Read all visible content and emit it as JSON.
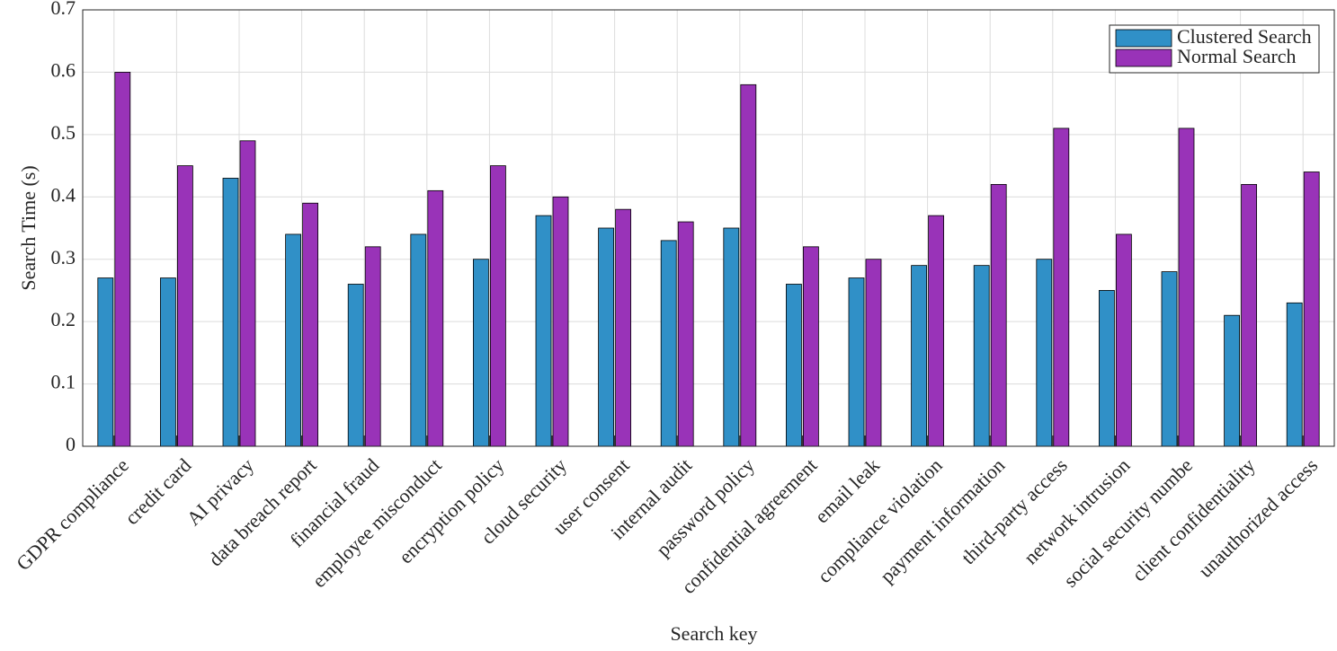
{
  "chart_data": {
    "type": "bar",
    "xlabel": "Search key",
    "ylabel": "Search Time (s)",
    "categories": [
      "GDPR compliance",
      "credit card",
      "AI privacy",
      "data breach report",
      "financial fraud",
      "employee misconduct",
      "encryption policy",
      "cloud security",
      "user consent",
      "internal audit",
      "password policy",
      "confidential agreement",
      "email leak",
      "compliance violation",
      "payment information",
      "third-party access",
      "network intrusion",
      "social security numbe",
      "client confidentiality",
      "unauthorized access"
    ],
    "series": [
      {
        "name": "Clustered Search",
        "color": "#3090c7",
        "values": [
          0.27,
          0.27,
          0.43,
          0.34,
          0.26,
          0.34,
          0.3,
          0.37,
          0.35,
          0.33,
          0.35,
          0.26,
          0.27,
          0.29,
          0.29,
          0.3,
          0.25,
          0.28,
          0.21,
          0.23
        ]
      },
      {
        "name": "Normal Search",
        "color": "#9933b8",
        "values": [
          0.6,
          0.45,
          0.49,
          0.39,
          0.32,
          0.41,
          0.45,
          0.4,
          0.38,
          0.36,
          0.58,
          0.32,
          0.3,
          0.37,
          0.42,
          0.51,
          0.34,
          0.51,
          0.42,
          0.44
        ]
      }
    ],
    "ylim": [
      0,
      0.7
    ],
    "yticks": [
      0,
      0.1,
      0.2,
      0.3,
      0.4,
      0.5,
      0.6,
      0.7
    ],
    "grid": true,
    "legend": "northeast"
  }
}
